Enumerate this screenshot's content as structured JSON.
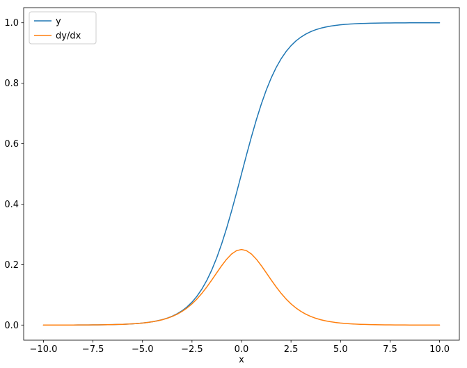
{
  "chart_data": {
    "type": "line",
    "title": "",
    "xlabel": "x",
    "ylabel": "",
    "xlim": [
      -11,
      11
    ],
    "ylim": [
      -0.05,
      1.05
    ],
    "grid": false,
    "legend": {
      "position": "upper left",
      "entries": [
        "y",
        "dy/dx"
      ]
    },
    "xticks": {
      "values": [
        -10.0,
        -7.5,
        -5.0,
        -2.5,
        0.0,
        2.5,
        5.0,
        7.5,
        10.0
      ],
      "labels": [
        "−10.0",
        "−7.5",
        "−5.0",
        "−2.5",
        "0.0",
        "2.5",
        "5.0",
        "7.5",
        "10.0"
      ]
    },
    "yticks": {
      "values": [
        0.0,
        0.2,
        0.4,
        0.6,
        0.8,
        1.0
      ],
      "labels": [
        "0.0",
        "0.2",
        "0.4",
        "0.6",
        "0.8",
        "1.0"
      ]
    },
    "x": [
      -10,
      -9.75,
      -9.5,
      -9.25,
      -9,
      -8.75,
      -8.5,
      -8.25,
      -8,
      -7.75,
      -7.5,
      -7.25,
      -7,
      -6.75,
      -6.5,
      -6.25,
      -6,
      -5.75,
      -5.5,
      -5.25,
      -5,
      -4.75,
      -4.5,
      -4.25,
      -4,
      -3.75,
      -3.5,
      -3.25,
      -3,
      -2.75,
      -2.5,
      -2.25,
      -2,
      -1.75,
      -1.5,
      -1.25,
      -1,
      -0.75,
      -0.5,
      -0.25,
      0,
      0.25,
      0.5,
      0.75,
      1,
      1.25,
      1.5,
      1.75,
      2,
      2.25,
      2.5,
      2.75,
      3,
      3.25,
      3.5,
      3.75,
      4,
      4.25,
      4.5,
      4.75,
      5,
      5.25,
      5.5,
      5.75,
      6,
      6.25,
      6.5,
      6.75,
      7,
      7.25,
      7.5,
      7.75,
      8,
      8.25,
      8.5,
      8.75,
      9,
      9.25,
      9.5,
      9.75,
      10
    ],
    "series": [
      {
        "name": "y",
        "key": "sigmoid",
        "color": "#1f77b4",
        "values": [
          5e-05,
          6e-05,
          7e-05,
          0.0001,
          0.00012,
          0.00016,
          0.0002,
          0.00026,
          0.00034,
          0.00043,
          0.00055,
          0.00071,
          0.00091,
          0.00117,
          0.0015,
          0.00193,
          0.00247,
          0.00317,
          0.00407,
          0.00522,
          0.00669,
          0.00858,
          0.01099,
          0.01406,
          0.01799,
          0.02298,
          0.02931,
          0.03733,
          0.04743,
          0.06009,
          0.07586,
          0.09535,
          0.1192,
          0.14805,
          0.18243,
          0.2227,
          0.26894,
          0.32082,
          0.37754,
          0.43782,
          0.5,
          0.56218,
          0.62246,
          0.67918,
          0.73106,
          0.7773,
          0.81757,
          0.85195,
          0.8808,
          0.90465,
          0.92414,
          0.93991,
          0.95257,
          0.96267,
          0.97069,
          0.97702,
          0.98201,
          0.98594,
          0.98901,
          0.99142,
          0.99331,
          0.99478,
          0.99593,
          0.99683,
          0.99753,
          0.99807,
          0.9985,
          0.99883,
          0.99909,
          0.99929,
          0.99945,
          0.99957,
          0.99966,
          0.99974,
          0.9998,
          0.99984,
          0.99988,
          0.9999,
          0.99993,
          0.99994,
          0.99995
        ]
      },
      {
        "name": "dy/dx",
        "key": "derivative",
        "color": "#ff7f0e",
        "values": [
          5e-05,
          6e-05,
          7e-05,
          0.0001,
          0.00012,
          0.00016,
          0.0002,
          0.00026,
          0.00034,
          0.00043,
          0.00055,
          0.00071,
          0.00091,
          0.00117,
          0.0015,
          0.00193,
          0.00246,
          0.00316,
          0.00405,
          0.00519,
          0.00664,
          0.00851,
          0.01087,
          0.01386,
          0.01766,
          0.02245,
          0.02845,
          0.03594,
          0.04518,
          0.05648,
          0.0701,
          0.08626,
          0.10499,
          0.12613,
          0.14915,
          0.1731,
          0.19661,
          0.2179,
          0.235,
          0.24614,
          0.25,
          0.24614,
          0.235,
          0.2179,
          0.19661,
          0.1731,
          0.14915,
          0.12613,
          0.10499,
          0.08626,
          0.0701,
          0.05648,
          0.04518,
          0.03594,
          0.02845,
          0.02245,
          0.01766,
          0.01386,
          0.01087,
          0.00851,
          0.00664,
          0.00519,
          0.00405,
          0.00316,
          0.00246,
          0.00193,
          0.0015,
          0.00117,
          0.00091,
          0.00071,
          0.00055,
          0.00043,
          0.00034,
          0.00026,
          0.0002,
          0.00016,
          0.00012,
          0.0001,
          7e-05,
          6e-05,
          5e-05
        ]
      }
    ]
  }
}
